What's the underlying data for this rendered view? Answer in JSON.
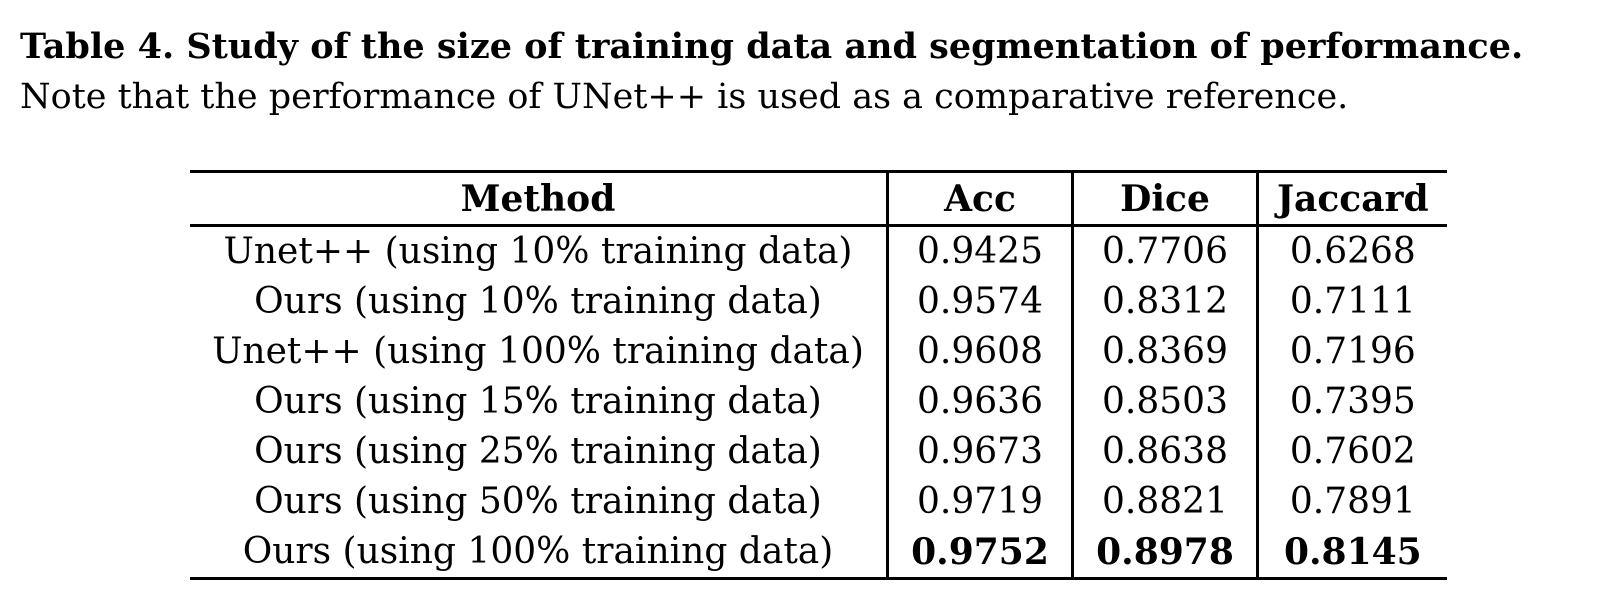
{
  "caption": {
    "title": "Table 4. Study of the size of training data and segmentation of performance.",
    "note": "Note that the performance of UNet++ is used as a comparative reference."
  },
  "table": {
    "headers": [
      "Method",
      "Acc",
      "Dice",
      "Jaccard"
    ],
    "rows": [
      {
        "method": "Unet++ (using 10% training data)",
        "acc": "0.9425",
        "dice": "0.7706",
        "jaccard": "0.6268"
      },
      {
        "method": "Ours (using 10% training data)",
        "acc": "0.9574",
        "dice": "0.8312",
        "jaccard": "0.7111"
      },
      {
        "method": "Unet++ (using 100% training data)",
        "acc": "0.9608",
        "dice": "0.8369",
        "jaccard": "0.7196"
      },
      {
        "method": "Ours (using 15% training data)",
        "acc": "0.9636",
        "dice": "0.8503",
        "jaccard": "0.7395"
      },
      {
        "method": "Ours (using 25% training data)",
        "acc": "0.9673",
        "dice": "0.8638",
        "jaccard": "0.7602"
      },
      {
        "method": "Ours (using 50% training data)",
        "acc": "0.9719",
        "dice": "0.8821",
        "jaccard": "0.7891"
      },
      {
        "method": "Ours (using 100% training data)",
        "acc": "0.9752",
        "dice": "0.8978",
        "jaccard": "0.8145"
      }
    ],
    "best_row_index": 6
  }
}
